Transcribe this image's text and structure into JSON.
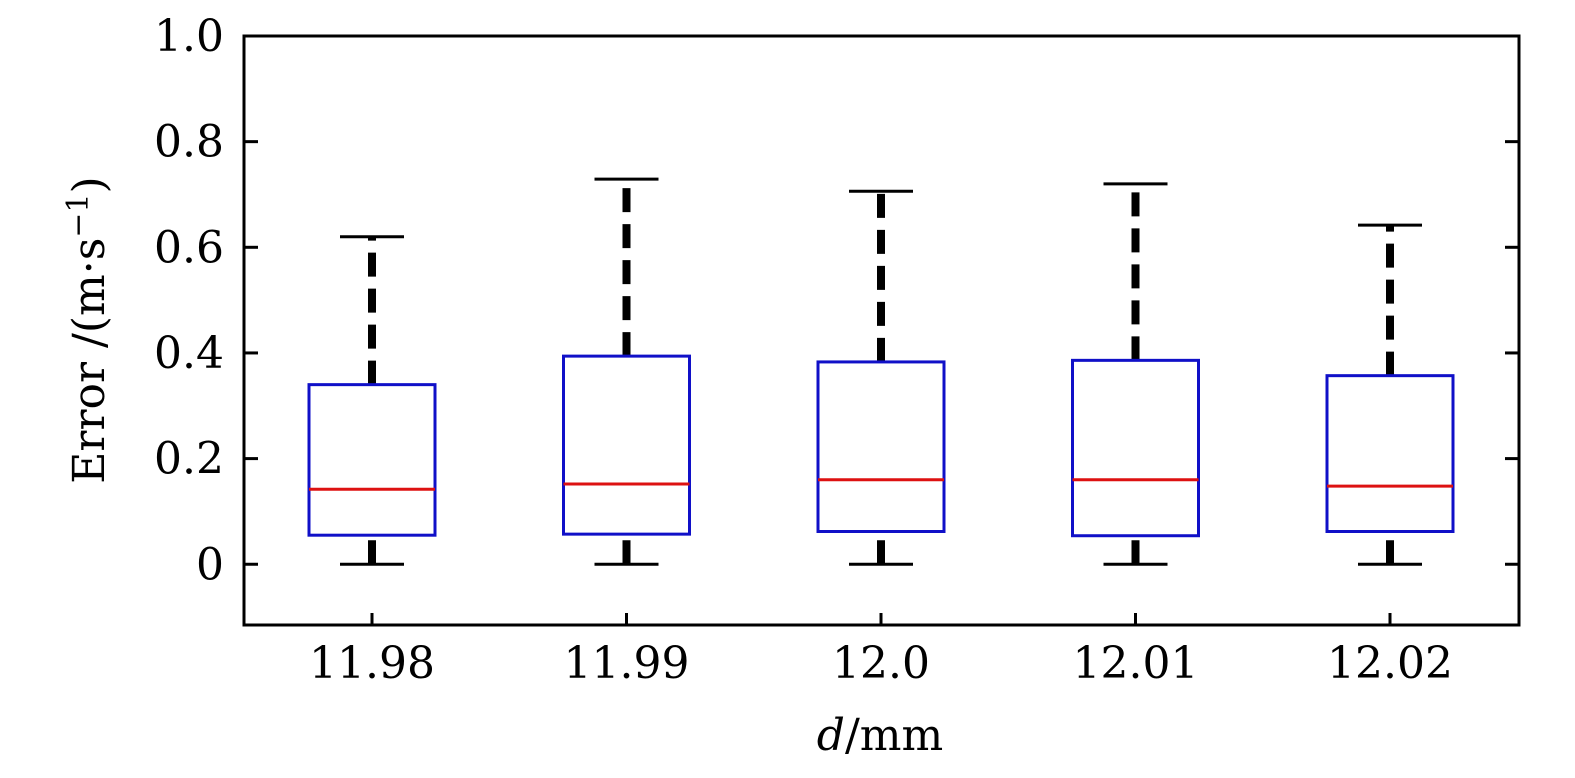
{
  "chart_data": {
    "type": "boxplot",
    "xlabel_var": "d",
    "xlabel_unit": "/mm",
    "ylabel": "Error /(m·s",
    "ylabel_sup": "−1",
    "ylabel_close": ")",
    "categories": [
      "11.98",
      "11.99",
      "12.0",
      "12.01",
      "12.02"
    ],
    "boxes": [
      {
        "category": "11.98",
        "whisker_low": 0.0,
        "q1": 0.055,
        "median": 0.142,
        "q3": 0.34,
        "whisker_high": 0.62
      },
      {
        "category": "11.99",
        "whisker_low": 0.0,
        "q1": 0.057,
        "median": 0.152,
        "q3": 0.394,
        "whisker_high": 0.729
      },
      {
        "category": "12.0",
        "whisker_low": 0.0,
        "q1": 0.062,
        "median": 0.16,
        "q3": 0.383,
        "whisker_high": 0.706
      },
      {
        "category": "12.01",
        "whisker_low": 0.0,
        "q1": 0.054,
        "median": 0.16,
        "q3": 0.386,
        "whisker_high": 0.72
      },
      {
        "category": "12.02",
        "whisker_low": 0.0,
        "q1": 0.062,
        "median": 0.148,
        "q3": 0.357,
        "whisker_high": 0.642
      }
    ],
    "ylim": [
      -0.115,
      1.0
    ],
    "yticks": [
      0,
      0.2,
      0.4,
      0.6,
      0.8,
      1.0
    ],
    "ytick_labels": [
      "0",
      "0.2",
      "0.4",
      "0.6",
      "0.8",
      "1.0"
    ],
    "grid": false,
    "colors": {
      "box": "#1010c8",
      "median": "#dd1111",
      "whisker": "#000000",
      "axes": "#000000"
    }
  }
}
